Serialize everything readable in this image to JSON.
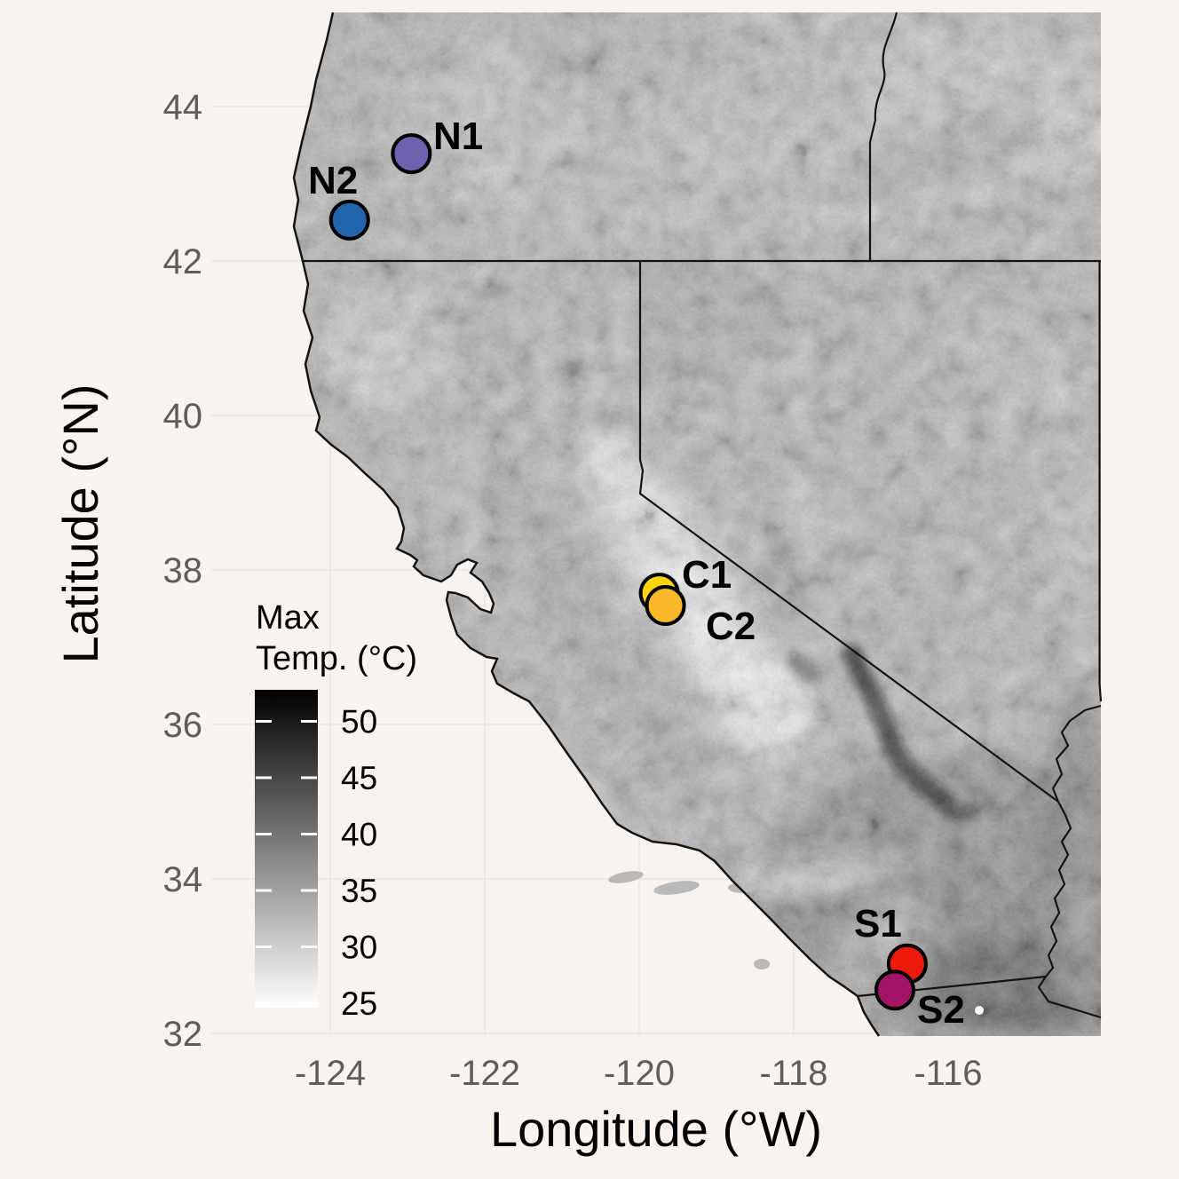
{
  "figure": {
    "background_color": "#f8f3ee",
    "gridline_color": "#eceae5",
    "tick_label_color": "#615c58",
    "border_color": "#141414",
    "land_base_color": "#b3b3b3"
  },
  "axes": {
    "x": {
      "title": "Longitude (°W)",
      "tick_labels": [
        "-124",
        "-122",
        "-120",
        "-118",
        "-116"
      ],
      "tick_values": [
        -124,
        -122,
        -120,
        -118,
        -116
      ]
    },
    "y": {
      "title": "Latitude (°N)",
      "tick_labels": [
        "44",
        "42",
        "40",
        "38",
        "36",
        "34",
        "32"
      ],
      "tick_values": [
        44,
        42,
        40,
        38,
        36,
        34,
        32
      ]
    }
  },
  "legend": {
    "title_line1": "Max",
    "title_line2": "Temp. (°C)",
    "tick_labels": [
      "50",
      "45",
      "40",
      "35",
      "30",
      "25"
    ],
    "tick_values": [
      50,
      45,
      40,
      35,
      30,
      25
    ],
    "high_color": "#000000",
    "low_color": "#ffffff",
    "value_range": [
      24.6,
      52.8
    ]
  },
  "sites": [
    {
      "label": "N1",
      "lon": -122.95,
      "lat": 43.39,
      "color": "#6E61AD"
    },
    {
      "label": "N2",
      "lon": -123.75,
      "lat": 42.53,
      "color": "#2166AC"
    },
    {
      "label": "C1",
      "lon": -119.74,
      "lat": 37.7,
      "color": "#FFD20F"
    },
    {
      "label": "C2",
      "lon": -119.66,
      "lat": 37.54,
      "color": "#FBB829"
    },
    {
      "label": "S1",
      "lon": -116.53,
      "lat": 32.9,
      "color": "#EC1B0C"
    },
    {
      "label": "S2",
      "lon": -116.69,
      "lat": 32.56,
      "color": "#A21465"
    }
  ],
  "chart_data": {
    "type": "scatter",
    "title": "",
    "xlabel": "Longitude (°W)",
    "ylabel": "Latitude (°N)",
    "xlim": [
      -125.55,
      -114.02
    ],
    "ylim": [
      31.98,
      45.22
    ],
    "grid": true,
    "legend_position": "inside bottom-left",
    "raster_legend": {
      "label": "Max Temp. (°C)",
      "scale": "white(25) to black(50+) grayscale",
      "ticks": [
        25,
        30,
        35,
        40,
        45,
        50
      ]
    },
    "series": [
      {
        "name": "N1",
        "x": -122.95,
        "y": 43.39,
        "color": "#6E61AD"
      },
      {
        "name": "N2",
        "x": -123.75,
        "y": 42.53,
        "color": "#2166AC"
      },
      {
        "name": "C1",
        "x": -119.74,
        "y": 37.7,
        "color": "#FFD20F"
      },
      {
        "name": "C2",
        "x": -119.66,
        "y": 37.54,
        "color": "#FBB829"
      },
      {
        "name": "S1",
        "x": -116.53,
        "y": 32.9,
        "color": "#EC1B0C"
      },
      {
        "name": "S2",
        "x": -116.69,
        "y": 32.56,
        "color": "#A21465"
      }
    ]
  }
}
